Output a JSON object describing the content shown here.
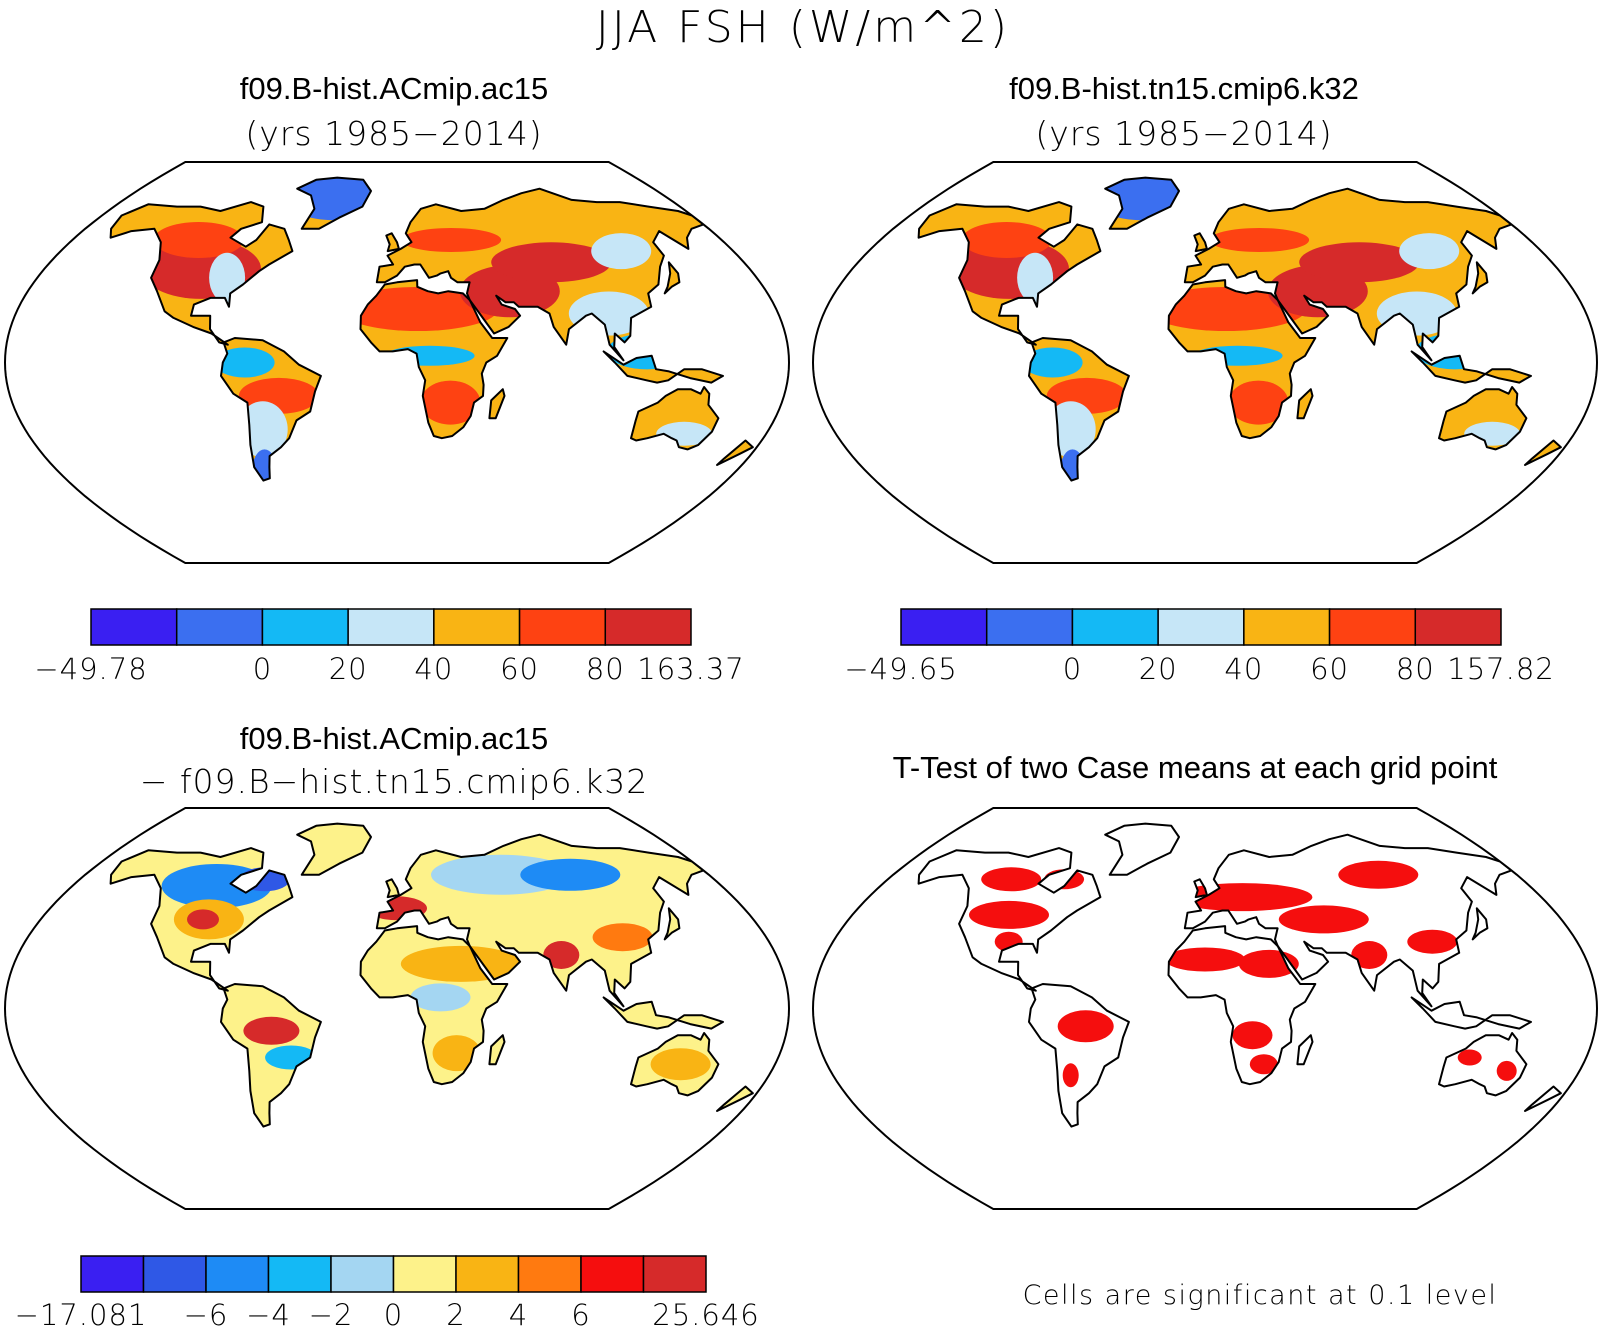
{
  "title": "JJA FSH (W/m^2)",
  "panels": [
    {
      "id": "case1",
      "title": "f09.B-hist.ACmip.ac15",
      "subtitle": "(yrs 1985−2014)",
      "colorbar": {
        "colors": [
          "#3a1ff2",
          "#3b6ff0",
          "#14b9f5",
          "#c6e6f7",
          "#f9b414",
          "#fe4212",
          "#d62a2a"
        ],
        "labels": [
          "−49.78",
          "",
          "0",
          "20",
          "40",
          "60",
          "80",
          "163.37"
        ]
      }
    },
    {
      "id": "case2",
      "title": "f09.B-hist.tn15.cmip6.k32",
      "subtitle": "(yrs 1985−2014)",
      "colorbar": {
        "colors": [
          "#3a1ff2",
          "#3b6ff0",
          "#14b9f5",
          "#c6e6f7",
          "#f9b414",
          "#fe4212",
          "#d62a2a"
        ],
        "labels": [
          "−49.65",
          "",
          "0",
          "20",
          "40",
          "60",
          "80",
          "157.82"
        ]
      }
    },
    {
      "id": "diff",
      "title": "f09.B-hist.ACmip.ac15",
      "subtitle": "− f09.B−hist.tn15.cmip6.k32",
      "colorbar": {
        "colors": [
          "#3a1ff2",
          "#2f58e6",
          "#1e8bf5",
          "#14b9f5",
          "#a4d6f2",
          "#fdf28a",
          "#f9b414",
          "#ff7a10",
          "#f50e0e",
          "#d62a2a"
        ],
        "labels": [
          "−17.081",
          "",
          "−6",
          "−4",
          "−2",
          "0",
          "2",
          "4",
          "6",
          "",
          "25.646"
        ]
      }
    },
    {
      "id": "ttest",
      "title": "T-Test of two Case means at each grid point",
      "subtitle": "",
      "note": "Cells are significant at 0.1 level"
    }
  ]
}
